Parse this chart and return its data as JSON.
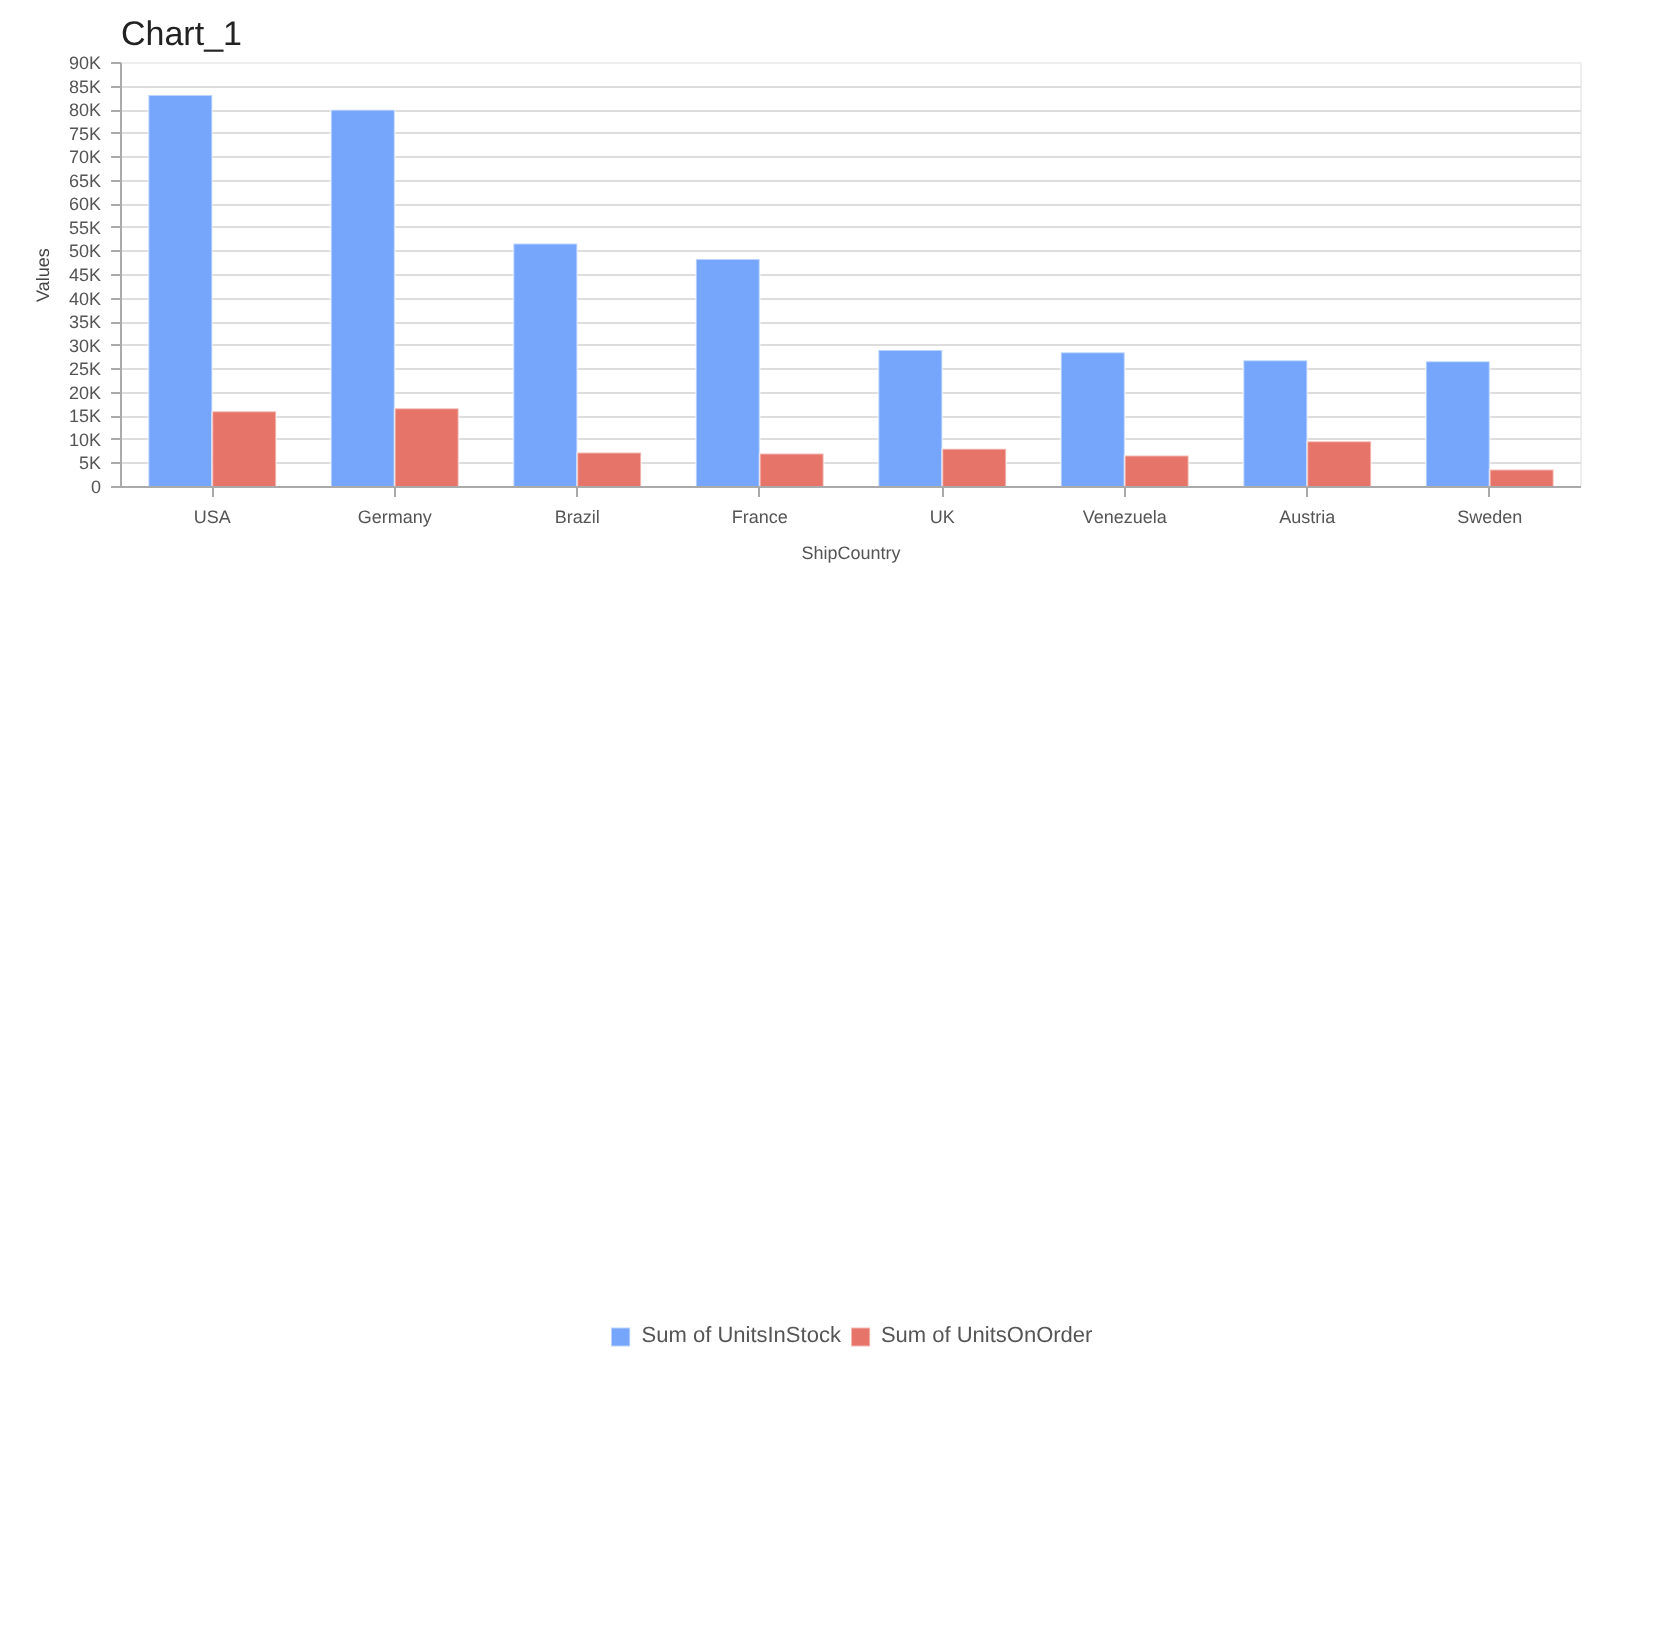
{
  "chart_data": {
    "type": "bar",
    "title": "Chart_1",
    "xlabel": "ShipCountry",
    "ylabel": "Values",
    "categories": [
      "USA",
      "Germany",
      "Brazil",
      "France",
      "UK",
      "Venezuela",
      "Austria",
      "Sweden"
    ],
    "series": [
      {
        "name": "Sum of UnitsInStock",
        "color": "#75a6fb",
        "values": [
          83200,
          80100,
          51700,
          48400,
          29100,
          28600,
          26900,
          26700
        ]
      },
      {
        "name": "Sum of UnitsOnOrder",
        "color": "#e67468",
        "values": [
          16100,
          16700,
          7300,
          7100,
          8100,
          6700,
          9700,
          3700
        ]
      }
    ],
    "ylim": [
      0,
      90000
    ],
    "yticks": [
      0,
      {
        "value": 5000,
        "label": "5K"
      },
      {
        "value": 10000,
        "label": "10K"
      },
      {
        "value": 15000,
        "label": "15K"
      },
      {
        "value": 20000,
        "label": "20K"
      },
      {
        "value": 25000,
        "label": "25K"
      },
      {
        "value": 30000,
        "label": "30K"
      },
      {
        "value": 35000,
        "label": "35K"
      },
      {
        "value": 40000,
        "label": "40K"
      },
      {
        "value": 45000,
        "label": "45K"
      },
      {
        "value": 50000,
        "label": "50K"
      },
      {
        "value": 55000,
        "label": "55K"
      },
      {
        "value": 60000,
        "label": "60K"
      },
      {
        "value": 65000,
        "label": "65K"
      },
      {
        "value": 70000,
        "label": "70K"
      },
      {
        "value": 75000,
        "label": "75K"
      },
      {
        "value": 80000,
        "label": "80K"
      },
      {
        "value": 85000,
        "label": "85K"
      },
      {
        "value": 90000,
        "label": "90K"
      }
    ],
    "grid": "y",
    "legend": "bottom"
  }
}
